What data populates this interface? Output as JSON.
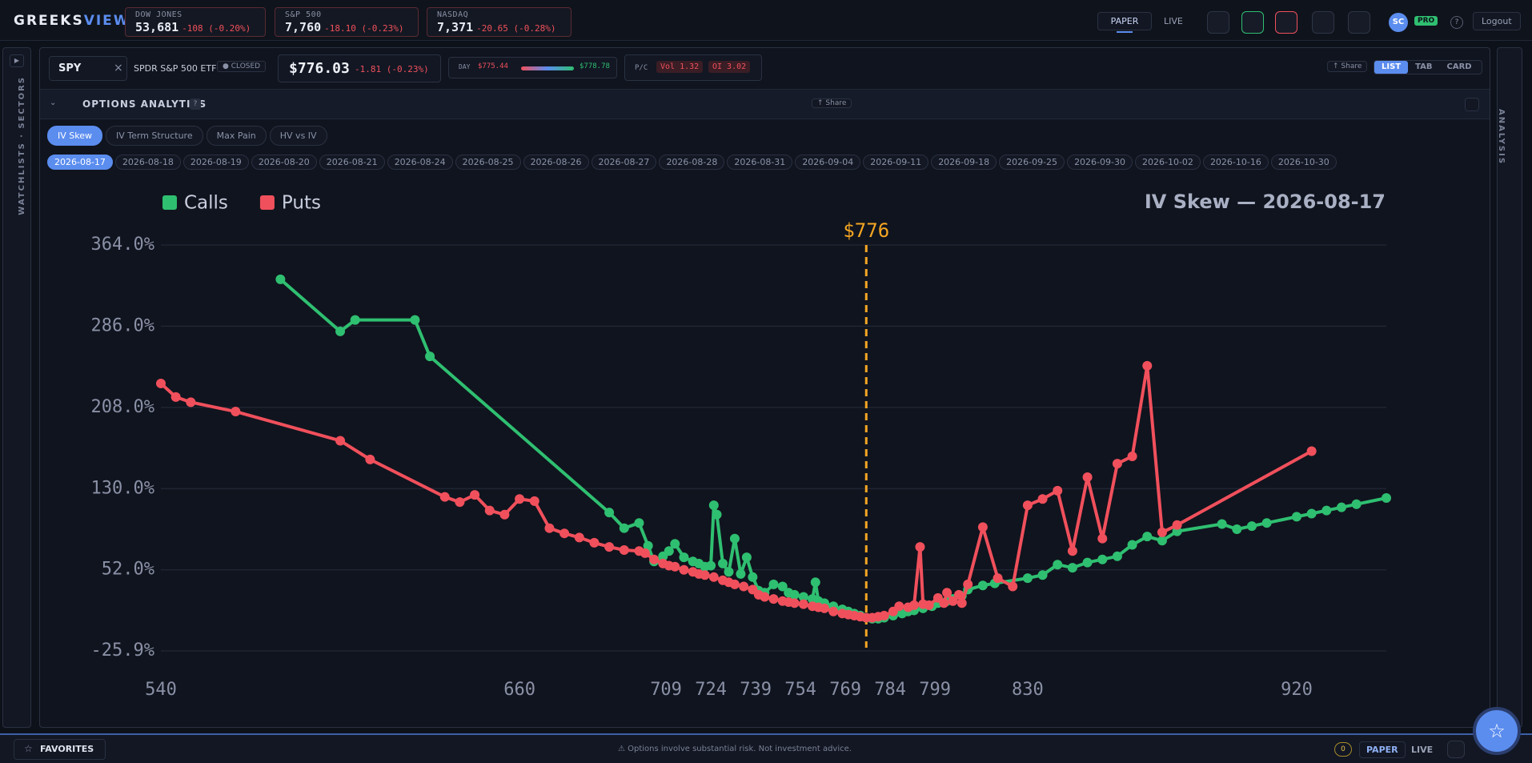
{
  "header": {
    "logo_a": "GREEKS",
    "logo_b": "VIEW",
    "indices": [
      {
        "name": "DOW JONES",
        "value": "53,681",
        "change": "-108 (-0.20%)"
      },
      {
        "name": "S&P 500",
        "value": "7,760",
        "change": "-18.10 (-0.23%)"
      },
      {
        "name": "NASDAQ",
        "value": "7,371",
        "change": "-20.65 (-0.28%)"
      }
    ],
    "modes": [
      "PAPER",
      "LIVE"
    ],
    "avatar": "SC",
    "badge": "PRO",
    "help": "?",
    "logout": "Logout"
  },
  "sidebar_left": "WATCHLISTS · SECTORS",
  "sidebar_right": "ANALYSIS",
  "toolbar": {
    "symbol": "SPY",
    "clear": "×",
    "name": "SPDR S&P 500 ETF",
    "status": "CLOSED",
    "price": "$776.03",
    "change": "-1.81 (-0.23%)",
    "day_label": "DAY",
    "day_low": "$775.44",
    "day_high": "$778.78",
    "pc_label": "P/C",
    "vol": "Vol 1.32",
    "oi": "OI 3.02",
    "share": "↑ Share",
    "views": [
      "LIST",
      "TAB",
      "CARD"
    ]
  },
  "panel": {
    "title": "OPTIONS ANALYTICS",
    "help": "?",
    "share": "↑ Share",
    "tabs": [
      "IV Skew",
      "IV Term Structure",
      "Max Pain",
      "HV vs IV"
    ],
    "expiries": [
      "2026-08-17",
      "2026-08-18",
      "2026-08-19",
      "2026-08-20",
      "2026-08-21",
      "2026-08-24",
      "2026-08-25",
      "2026-08-26",
      "2026-08-27",
      "2026-08-28",
      "2026-08-31",
      "2026-09-04",
      "2026-09-11",
      "2026-09-18",
      "2026-09-25",
      "2026-09-30",
      "2026-10-02",
      "2026-10-16",
      "2026-10-30"
    ]
  },
  "chart_data": {
    "type": "line",
    "title": "IV Skew — 2026-08-17",
    "legend": "top-left",
    "grid": true,
    "spot": {
      "value": 776,
      "label": "$776"
    },
    "xlim": [
      540,
      950
    ],
    "xticks": [
      540,
      660,
      709,
      724,
      739,
      754,
      769,
      784,
      799,
      830,
      920
    ],
    "ylim": [
      -25.9,
      364.0
    ],
    "yticks": [
      {
        "value": -25.9,
        "label": "-25.9%"
      },
      {
        "value": 52.0,
        "label": "52.0%"
      },
      {
        "value": 130.0,
        "label": "130.0%"
      },
      {
        "value": 208.0,
        "label": "208.0%"
      },
      {
        "value": 286.0,
        "label": "286.0%"
      },
      {
        "value": 364.0,
        "label": "364.0%"
      }
    ],
    "series": [
      {
        "name": "Calls",
        "color": "#2fbf71",
        "x": [
          580,
          600,
          605,
          625,
          630,
          690,
          695,
          700,
          703,
          705,
          708,
          710,
          712,
          715,
          718,
          720,
          722,
          724,
          725,
          726,
          728,
          730,
          732,
          734,
          736,
          738,
          740,
          742,
          745,
          748,
          750,
          752,
          755,
          758,
          759,
          760,
          762,
          765,
          768,
          770,
          772,
          774,
          776,
          778,
          780,
          782,
          785,
          788,
          790,
          792,
          795,
          798,
          800,
          803,
          805,
          808,
          810,
          815,
          819,
          830,
          835,
          840,
          845,
          850,
          855,
          860,
          865,
          870,
          875,
          880,
          895,
          900,
          905,
          910,
          920,
          925,
          930,
          935,
          940,
          950
        ],
        "values": [
          331,
          281,
          292,
          292,
          257,
          107,
          92,
          97,
          75,
          60,
          65,
          70,
          77,
          64,
          60,
          58,
          55,
          56,
          114,
          105,
          58,
          50,
          82,
          48,
          64,
          45,
          32,
          30,
          38,
          36,
          30,
          28,
          26,
          24,
          40,
          22,
          20,
          17,
          14,
          12,
          10,
          8,
          6,
          5,
          5,
          6,
          8,
          10,
          12,
          13,
          15,
          17,
          20,
          22,
          24,
          27,
          33,
          37,
          39,
          44,
          47,
          57,
          54,
          59,
          62,
          65,
          76,
          84,
          80,
          89,
          96,
          91,
          94,
          97,
          103,
          106,
          109,
          112,
          115,
          121
        ]
      },
      {
        "name": "Puts",
        "color": "#f0505c",
        "x": [
          540,
          545,
          550,
          565,
          600,
          610,
          635,
          640,
          645,
          650,
          655,
          660,
          665,
          670,
          675,
          680,
          685,
          690,
          695,
          700,
          702,
          705,
          708,
          710,
          712,
          715,
          718,
          720,
          722,
          725,
          728,
          730,
          732,
          735,
          738,
          740,
          742,
          745,
          748,
          750,
          752,
          755,
          758,
          760,
          762,
          765,
          768,
          770,
          772,
          774,
          776,
          778,
          780,
          782,
          785,
          787,
          790,
          792,
          794,
          795,
          797,
          800,
          802,
          803,
          805,
          807,
          808,
          810,
          815,
          820,
          825,
          830,
          835,
          840,
          845,
          850,
          855,
          860,
          865,
          870,
          875,
          880,
          925
        ],
        "values": [
          231,
          218,
          213,
          204,
          176,
          158,
          122,
          117,
          124,
          109,
          105,
          120,
          118,
          92,
          87,
          83,
          78,
          74,
          71,
          70,
          68,
          62,
          58,
          56,
          55,
          52,
          50,
          48,
          47,
          45,
          42,
          40,
          38,
          36,
          33,
          28,
          26,
          24,
          22,
          21,
          20,
          19,
          17,
          16,
          15,
          12,
          10,
          9,
          8,
          7,
          6,
          6,
          7,
          8,
          12,
          17,
          16,
          18,
          74,
          19,
          18,
          25,
          20,
          30,
          22,
          28,
          20,
          38,
          93,
          44,
          36,
          114,
          120,
          128,
          70,
          141,
          82,
          154,
          161,
          248,
          88,
          95,
          166
        ]
      }
    ]
  },
  "footer": {
    "favorites": "FAVORITES",
    "disclaimer": "⚠ Options involve substantial risk. Not investment advice.",
    "count": "0",
    "modes": [
      "PAPER",
      "LIVE"
    ]
  }
}
